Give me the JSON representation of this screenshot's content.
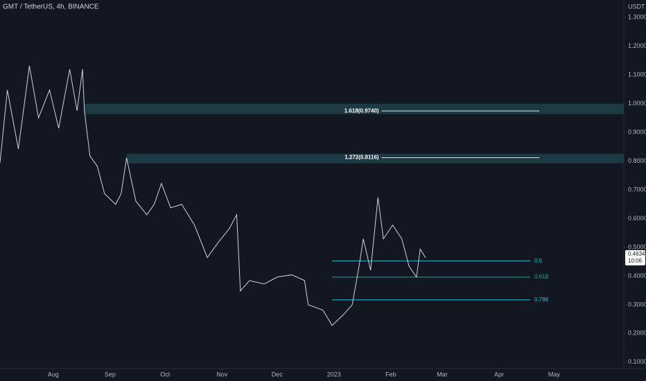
{
  "chart_data": {
    "type": "line",
    "title": "GMT / TetherUS, 4h, BINANCE",
    "y_axis_label": "USDT",
    "color": "#d1d4dc",
    "x": [
      -29,
      -25,
      -19,
      -13,
      -8,
      -2,
      3,
      9,
      13,
      16,
      17,
      20,
      24,
      28,
      34,
      37,
      40,
      45,
      51,
      55,
      59,
      64,
      70,
      77,
      84,
      90,
      96,
      100,
      102,
      107,
      115,
      122,
      130,
      137,
      139,
      147,
      152,
      158,
      163,
      167,
      169,
      173,
      177,
      180,
      185,
      190,
      194,
      198,
      200,
      203
    ],
    "values": [
      0.794,
      1.047,
      0.842,
      1.131,
      0.95,
      1.047,
      0.914,
      1.119,
      0.975,
      1.119,
      0.975,
      0.818,
      0.782,
      0.686,
      0.649,
      0.686,
      0.811,
      0.661,
      0.613,
      0.649,
      0.722,
      0.637,
      0.649,
      0.577,
      0.464,
      0.517,
      0.565,
      0.613,
      0.348,
      0.384,
      0.372,
      0.396,
      0.404,
      0.384,
      0.3,
      0.281,
      0.228,
      0.264,
      0.3,
      0.445,
      0.529,
      0.42,
      0.673,
      0.529,
      0.577,
      0.529,
      0.433,
      0.396,
      0.493,
      0.4634
    ],
    "xlim": [
      -29,
      311
    ],
    "xticks": [
      {
        "value": 0,
        "label": "Aug"
      },
      {
        "value": 31,
        "label": "Sep"
      },
      {
        "value": 61,
        "label": "Oct"
      },
      {
        "value": 92,
        "label": "Nov"
      },
      {
        "value": 122,
        "label": "Dec"
      },
      {
        "value": 153,
        "label": "2023"
      },
      {
        "value": 184,
        "label": "Feb"
      },
      {
        "value": 212,
        "label": "Mar"
      },
      {
        "value": 243,
        "label": "Apr"
      },
      {
        "value": 273,
        "label": "May"
      }
    ],
    "ylim": [
      0.078,
      1.36
    ],
    "yticks": [
      {
        "value": 0.1,
        "label": "0.1000"
      },
      {
        "value": 0.2,
        "label": "0.2000"
      },
      {
        "value": 0.3,
        "label": "0.3000"
      },
      {
        "value": 0.4,
        "label": "0.4000"
      },
      {
        "value": 0.5,
        "label": "0.5000"
      },
      {
        "value": 0.6,
        "label": "0.6000"
      },
      {
        "value": 0.7,
        "label": "0.7000"
      },
      {
        "value": 0.8,
        "label": "0.8000"
      },
      {
        "value": 0.9,
        "label": "0.9000"
      },
      {
        "value": 1.0,
        "label": "1.0000"
      },
      {
        "value": 1.1,
        "label": "1.1000"
      },
      {
        "value": 1.2,
        "label": "1.2000"
      },
      {
        "value": 1.3,
        "label": "1.3000"
      }
    ],
    "zones": [
      {
        "range": [
          0.963,
          0.999
        ],
        "x": 17,
        "color": "#1c3a44",
        "line": 0.974,
        "line_x": [
          179,
          265
        ],
        "label": "1.618(0.9740)"
      },
      {
        "range": [
          0.792,
          0.825
        ],
        "x": 40,
        "color": "#1c3a44",
        "line": 0.8116,
        "line_x": [
          179,
          265
        ],
        "label": "1.272(0.8116)"
      }
    ],
    "levels": [
      {
        "value": 0.452,
        "label": "0.5",
        "x": [
          152,
          260
        ],
        "color": "#26c6da"
      },
      {
        "value": 0.396,
        "label": "0.618",
        "x": [
          152,
          260
        ],
        "color": "#26a69a"
      },
      {
        "value": 0.317,
        "label": "0.786",
        "x": [
          152,
          260
        ],
        "color": "#26c6da"
      }
    ],
    "last_price": {
      "value": 0.4634,
      "label": "0.4634",
      "countdown": "10:06"
    }
  }
}
